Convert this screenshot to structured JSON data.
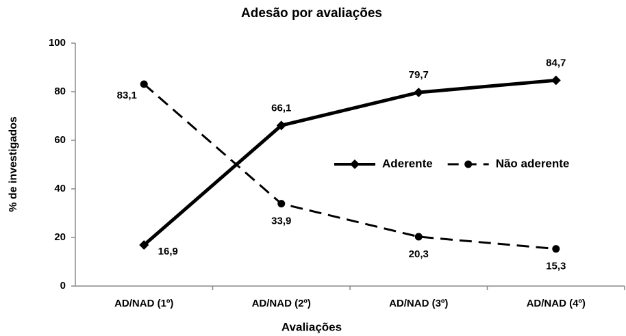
{
  "chart_data": {
    "type": "line",
    "title": "Adesão por avaliações",
    "x_label": "Avaliações",
    "y_label": "% de investigados",
    "categories": [
      "AD/NAD (1º)",
      "AD/NAD (2º)",
      "AD/NAD (3º)",
      "AD/NAD (4º)"
    ],
    "series": [
      {
        "name": "Aderente",
        "color": "#000000",
        "line_style": "solid",
        "marker": "diamond",
        "values": [
          16.9,
          66.1,
          79.7,
          84.7
        ],
        "value_labels": [
          "16,9",
          "66,1",
          "79,7",
          "84,7"
        ]
      },
      {
        "name": "Não aderente",
        "color": "#000000",
        "line_style": "dashed",
        "marker": "circle",
        "values": [
          83.1,
          33.9,
          20.3,
          15.3
        ],
        "value_labels": [
          "83,1",
          "33,9",
          "20,3",
          "15,3"
        ]
      }
    ],
    "ylim": [
      0,
      100
    ],
    "yticks": [
      0,
      20,
      40,
      60,
      80,
      100
    ],
    "grid": false,
    "legend": "right"
  }
}
